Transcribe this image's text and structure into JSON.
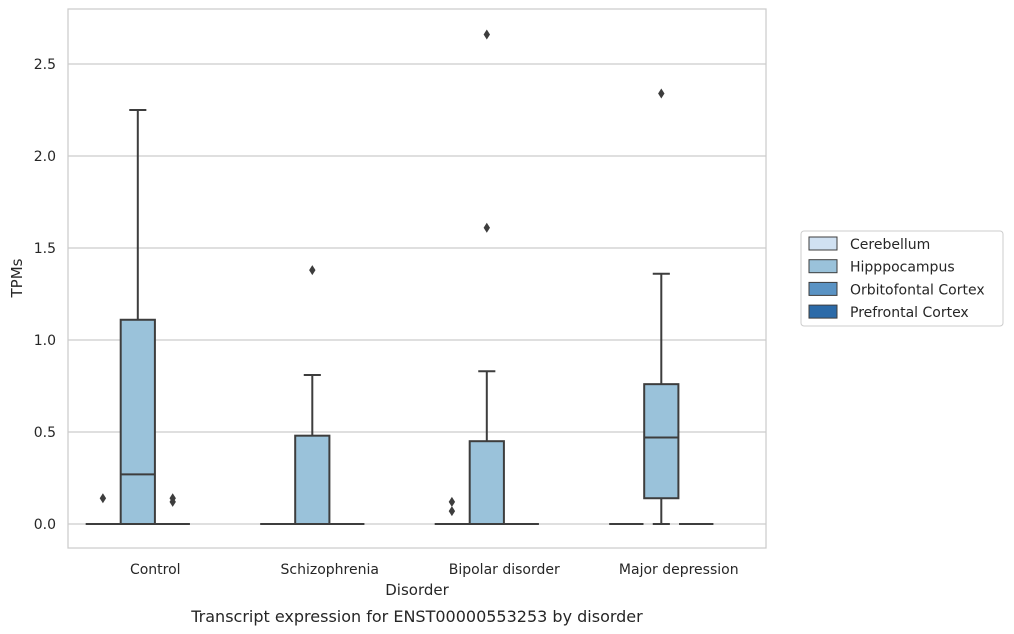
{
  "chart_data": {
    "type": "box",
    "caption": "Transcript expression for ENST00000553253 by disorder",
    "xlabel": "Disorder",
    "ylabel": "TPMs",
    "ylim": [
      -0.13,
      2.8
    ],
    "yticks": [
      "0.0",
      "0.5",
      "1.0",
      "1.5",
      "2.0",
      "2.5"
    ],
    "ytick_values": [
      0,
      0.5,
      1.0,
      1.5,
      2.0,
      2.5
    ],
    "grid": true,
    "legend_position": "right",
    "categories": [
      "Control",
      "Schizophrenia",
      "Bipolar disorder",
      "Major depression"
    ],
    "series": [
      {
        "name": "Cerebellum",
        "color": "#d0e1f2",
        "boxes": [
          {
            "q1": 0,
            "median": 0,
            "q3": 0,
            "whisker_low": 0,
            "whisker_high": 0,
            "outliers": [
              0.14
            ]
          },
          {
            "q1": 0,
            "median": 0,
            "q3": 0,
            "whisker_low": 0,
            "whisker_high": 0,
            "outliers": []
          },
          {
            "q1": 0,
            "median": 0,
            "q3": 0,
            "whisker_low": 0,
            "whisker_high": 0,
            "outliers": [
              0.07,
              0.12
            ]
          },
          {
            "q1": 0,
            "median": 0,
            "q3": 0,
            "whisker_low": 0,
            "whisker_high": 0,
            "outliers": []
          }
        ]
      },
      {
        "name": "Hipppocampus",
        "color": "#9ac2da",
        "boxes": [
          {
            "q1": 0,
            "median": 0.27,
            "q3": 1.11,
            "whisker_low": 0,
            "whisker_high": 2.25,
            "outliers": []
          },
          {
            "q1": 0,
            "median": 0,
            "q3": 0.48,
            "whisker_low": 0,
            "whisker_high": 0.81,
            "outliers": [
              1.38
            ]
          },
          {
            "q1": 0,
            "median": 0,
            "q3": 0.45,
            "whisker_low": 0,
            "whisker_high": 0.83,
            "outliers": [
              1.61,
              2.66
            ]
          },
          {
            "q1": 0.14,
            "median": 0.47,
            "q3": 0.76,
            "whisker_low": 0,
            "whisker_high": 1.36,
            "outliers": [
              2.34
            ]
          }
        ]
      },
      {
        "name": "Orbitofontal Cortex",
        "color": "#5a93c4",
        "boxes": [
          {
            "q1": 0,
            "median": 0,
            "q3": 0,
            "whisker_low": 0,
            "whisker_high": 0,
            "outliers": [
              0.12,
              0.14
            ]
          },
          {
            "q1": 0,
            "median": 0,
            "q3": 0,
            "whisker_low": 0,
            "whisker_high": 0,
            "outliers": []
          },
          {
            "q1": 0,
            "median": 0,
            "q3": 0,
            "whisker_low": 0,
            "whisker_high": 0,
            "outliers": []
          },
          {
            "q1": 0,
            "median": 0,
            "q3": 0,
            "whisker_low": 0,
            "whisker_high": 0,
            "outliers": []
          }
        ]
      },
      {
        "name": "Prefrontal Cortex",
        "color": "#2b6aa8",
        "boxes": [
          null,
          null,
          null,
          null
        ]
      }
    ]
  }
}
